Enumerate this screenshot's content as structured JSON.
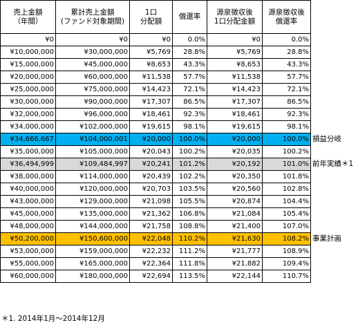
{
  "table": {
    "headers": [
      [
        "売上金額",
        "（年間）"
      ],
      [
        "累計売上金額",
        "(ファンド対象期間)"
      ],
      [
        "1口",
        "分配額"
      ],
      [
        "償還率"
      ],
      [
        "源泉徴収後",
        "1口分配金額"
      ],
      [
        "源泉徴収後",
        "償還率"
      ]
    ],
    "rows": [
      {
        "cells": [
          "¥0",
          "¥0",
          "¥0",
          "0.0%",
          "¥0",
          "0.0%"
        ],
        "highlight": "",
        "note": ""
      },
      {
        "cells": [
          "¥10,000,000",
          "¥30,000,000",
          "¥5,769",
          "28.8%",
          "¥5,769",
          "28.8%"
        ],
        "highlight": "",
        "note": ""
      },
      {
        "cells": [
          "¥15,000,000",
          "¥45,000,000",
          "¥8,653",
          "43.3%",
          "¥8,653",
          "43.3%"
        ],
        "highlight": "",
        "note": ""
      },
      {
        "cells": [
          "¥20,000,000",
          "¥60,000,000",
          "¥11,538",
          "57.7%",
          "¥11,538",
          "57.7%"
        ],
        "highlight": "",
        "note": ""
      },
      {
        "cells": [
          "¥25,000,000",
          "¥75,000,000",
          "¥14,423",
          "72.1%",
          "¥14,423",
          "72.1%"
        ],
        "highlight": "",
        "note": ""
      },
      {
        "cells": [
          "¥30,000,000",
          "¥90,000,000",
          "¥17,307",
          "86.5%",
          "¥17,307",
          "86.5%"
        ],
        "highlight": "",
        "note": ""
      },
      {
        "cells": [
          "¥32,000,000",
          "¥96,000,000",
          "¥18,461",
          "92.3%",
          "¥18,461",
          "92.3%"
        ],
        "highlight": "",
        "note": ""
      },
      {
        "cells": [
          "¥34,000,000",
          "¥102,000,000",
          "¥19,615",
          "98.1%",
          "¥19,615",
          "98.1%"
        ],
        "highlight": "",
        "note": ""
      },
      {
        "cells": [
          "¥34,666,667",
          "¥104,000,001",
          "¥20,000",
          "100.0%",
          "¥20,000",
          "100.0%"
        ],
        "highlight": "cyan",
        "note": "損益分岐"
      },
      {
        "cells": [
          "¥35,000,000",
          "¥105,000,000",
          "¥20,043",
          "100.2%",
          "¥20,035",
          "100.2%"
        ],
        "highlight": "",
        "note": ""
      },
      {
        "cells": [
          "¥36,494,999",
          "¥109,484,997",
          "¥20,241",
          "101.2%",
          "¥20,192",
          "101.0%"
        ],
        "highlight": "gray",
        "note": "前年実績＊1"
      },
      {
        "cells": [
          "¥38,000,000",
          "¥114,000,000",
          "¥20,439",
          "102.2%",
          "¥20,350",
          "101.8%"
        ],
        "highlight": "",
        "note": ""
      },
      {
        "cells": [
          "¥40,000,000",
          "¥120,000,000",
          "¥20,703",
          "103.5%",
          "¥20,560",
          "102.8%"
        ],
        "highlight": "",
        "note": ""
      },
      {
        "cells": [
          "¥43,000,000",
          "¥129,000,000",
          "¥21,098",
          "105.5%",
          "¥20,874",
          "104.4%"
        ],
        "highlight": "",
        "note": ""
      },
      {
        "cells": [
          "¥45,000,000",
          "¥135,000,000",
          "¥21,362",
          "106.8%",
          "¥21,084",
          "105.4%"
        ],
        "highlight": "",
        "note": ""
      },
      {
        "cells": [
          "¥48,000,000",
          "¥144,000,000",
          "¥21,758",
          "108.8%",
          "¥21,400",
          "107.0%"
        ],
        "highlight": "",
        "note": ""
      },
      {
        "cells": [
          "¥50,200,000",
          "¥150,600,000",
          "¥22,048",
          "110.2%",
          "¥21,630",
          "108.2%"
        ],
        "highlight": "orange",
        "note": "事業計画"
      },
      {
        "cells": [
          "¥53,000,000",
          "¥159,000,000",
          "¥22,232",
          "111.2%",
          "¥21,777",
          "108.9%"
        ],
        "highlight": "",
        "note": ""
      },
      {
        "cells": [
          "¥55,000,000",
          "¥165,000,000",
          "¥22,364",
          "111.8%",
          "¥21,882",
          "109.4%"
        ],
        "highlight": "",
        "note": ""
      },
      {
        "cells": [
          "¥60,000,000",
          "¥180,000,000",
          "¥22,694",
          "113.5%",
          "¥22,144",
          "110.7%"
        ],
        "highlight": "",
        "note": ""
      }
    ]
  },
  "footnote": "＊1.  2014年1月〜2014年12月",
  "colors": {
    "cyan": "#00b0f0",
    "gray": "#d9d9d9",
    "orange": "#ffc000"
  }
}
